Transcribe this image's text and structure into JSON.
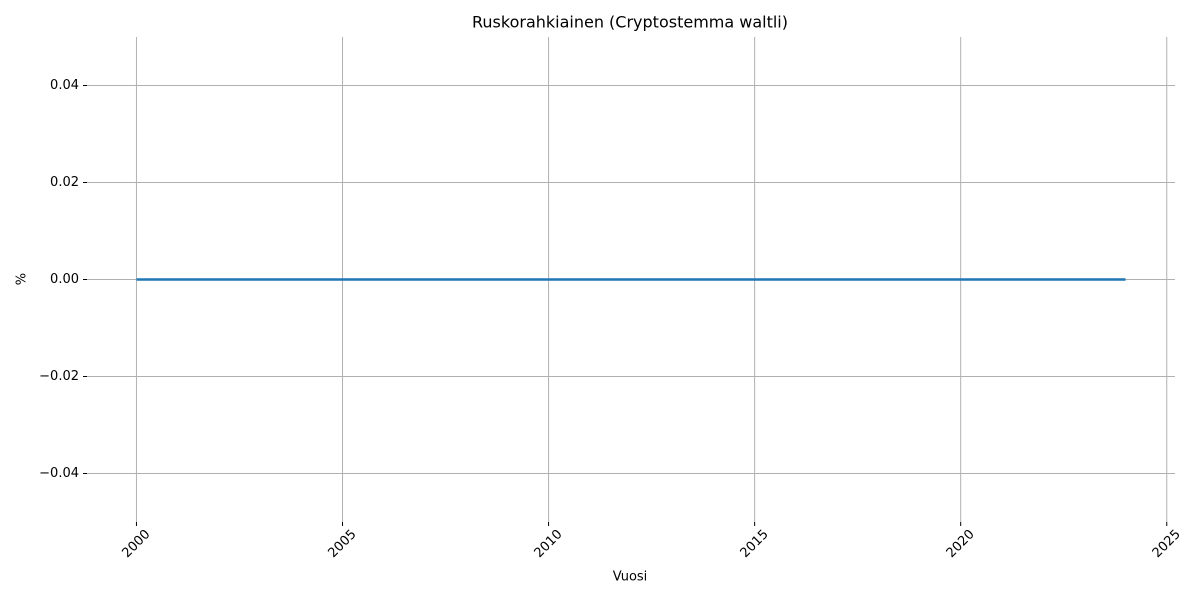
{
  "chart_data": {
    "type": "line",
    "title": "Ruskorahkiainen (Cryptostemma waltli)",
    "xlabel": "Vuosi",
    "ylabel": "%",
    "x": [
      2000,
      2001,
      2002,
      2003,
      2004,
      2005,
      2006,
      2007,
      2008,
      2009,
      2010,
      2011,
      2012,
      2013,
      2014,
      2015,
      2016,
      2017,
      2018,
      2019,
      2020,
      2021,
      2022,
      2023,
      2024
    ],
    "series": [
      {
        "color": "#1f77b4",
        "values": [
          0,
          0,
          0,
          0,
          0,
          0,
          0,
          0,
          0,
          0,
          0,
          0,
          0,
          0,
          0,
          0,
          0,
          0,
          0,
          0,
          0,
          0,
          0,
          0,
          0
        ]
      }
    ],
    "xlim": [
      1998.8,
      2025.2
    ],
    "xticks": [
      2000,
      2005,
      2010,
      2015,
      2020,
      2025
    ],
    "ylim": [
      -0.05,
      0.05
    ],
    "yticks": [
      {
        "value": -0.04,
        "label": "−0.04"
      },
      {
        "value": -0.02,
        "label": "−0.02"
      },
      {
        "value": 0,
        "label": "0.00"
      },
      0.02,
      0.04
    ],
    "grid": true
  }
}
